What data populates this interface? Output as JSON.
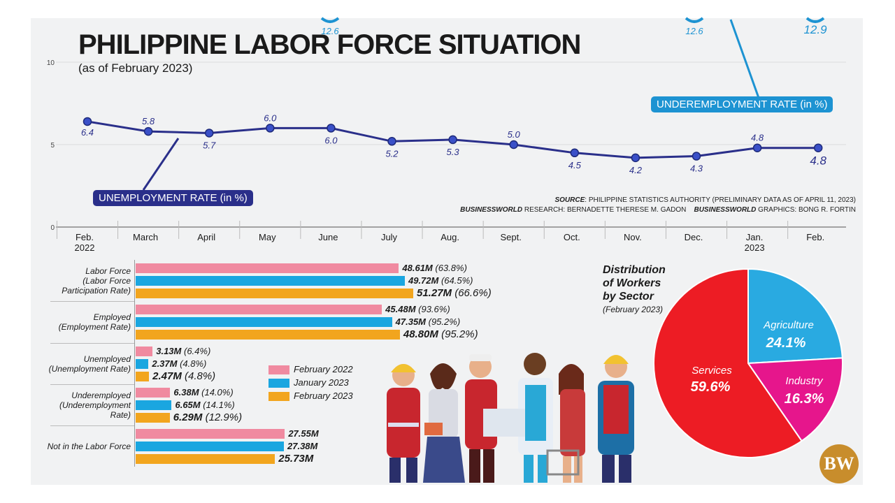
{
  "title": "PHILIPPINE LABOR FORCE SITUATION",
  "subtitle": "(as of February 2023)",
  "source": {
    "line1_label": "SOURCE",
    "line1_text": ": PHILIPPINE STATISTICS AUTHORITY (PRELIMINARY DATA AS OF APRIL 11, 2023)",
    "research_label": "BUSINESSWORLD",
    "research_text": " RESEARCH: BERNADETTE THERESE M. GADON",
    "graphics_label": "BUSINESSWORLD",
    "graphics_text": " GRAPHICS: BONG R. FORTIN"
  },
  "logo": "BW",
  "colors": {
    "unemployment": "#2a2f8a",
    "underemployment": "#1d93d2",
    "feb2022": "#f08aa0",
    "jan2023": "#1aa6e0",
    "feb2023": "#f2a51e",
    "services": "#ed1c24",
    "agriculture": "#29aae1",
    "industry": "#e6168c"
  },
  "chart_data": [
    {
      "type": "line",
      "categories": [
        "Feb.",
        "March",
        "April",
        "May",
        "June",
        "July",
        "Aug.",
        "Sept.",
        "Oct.",
        "Nov.",
        "Dec.",
        "Jan.",
        "Feb."
      ],
      "category_years": [
        "2022",
        "",
        "",
        "",
        "",
        "",
        "",
        "",
        "",
        "",
        "",
        "2023",
        ""
      ],
      "y_ticks": [
        "10",
        "5",
        "0"
      ],
      "ylim": [
        0,
        10
      ],
      "series": [
        {
          "name": "UNEMPLOYMENT RATE (in %)",
          "values": [
            6.4,
            5.8,
            5.7,
            6.0,
            6.0,
            5.2,
            5.3,
            5.0,
            4.5,
            4.2,
            4.3,
            4.8,
            4.8
          ],
          "labels": [
            "6.4",
            "5.8",
            "5.7",
            "6.0",
            "6.0",
            "5.2",
            "5.3",
            "5.0",
            "4.5",
            "4.2",
            "4.3",
            "4.8",
            "4.8"
          ]
        },
        {
          "name": "UNDEREMPLOYMENT RATE (in %)",
          "visible_labels": [
            {
              "index": 4,
              "label": "12.6"
            },
            {
              "index": 10,
              "label": "12.6"
            },
            {
              "index": 12,
              "label": "12.9"
            }
          ]
        }
      ]
    },
    {
      "type": "bar",
      "orientation": "horizontal",
      "categories": [
        [
          "Labor Force",
          "(Labor Force",
          "Participation Rate)"
        ],
        [
          "Employed",
          "(Employment Rate)"
        ],
        [
          "Unemployed",
          "(Unemployment Rate)"
        ],
        [
          "Underemployed",
          "(Underemployment",
          "Rate)"
        ],
        [
          "Not in the Labor Force"
        ]
      ],
      "series": [
        {
          "name": "February 2022",
          "values": [
            48.61,
            45.48,
            3.13,
            6.38,
            27.55
          ],
          "labels": [
            "48.61M",
            "45.48M",
            "3.13M",
            "6.38M",
            "27.55M"
          ],
          "pct": [
            "(63.8%)",
            "(93.6%)",
            "(6.4%)",
            "(14.0%)",
            ""
          ]
        },
        {
          "name": "January 2023",
          "values": [
            49.72,
            47.35,
            2.37,
            6.65,
            27.38
          ],
          "labels": [
            "49.72M",
            "47.35M",
            "2.37M",
            "6.65M",
            "27.38M"
          ],
          "pct": [
            "(64.5%)",
            "(95.2%)",
            "(4.8%)",
            "(14.1%)",
            ""
          ]
        },
        {
          "name": "February 2023",
          "values": [
            51.27,
            48.8,
            2.47,
            6.29,
            25.73
          ],
          "labels": [
            "51.27M",
            "48.80M",
            "2.47M",
            "6.29M",
            "25.73M"
          ],
          "pct": [
            "(66.6%)",
            "(95.2%)",
            "(4.8%)",
            "(12.9%)",
            ""
          ]
        }
      ]
    },
    {
      "type": "pie",
      "title": [
        "Distribution",
        "of Workers",
        "by Sector"
      ],
      "subtitle": "(February 2023)",
      "slices": [
        {
          "name": "Agriculture",
          "value": 24.1,
          "label": "24.1%"
        },
        {
          "name": "Industry",
          "value": 16.3,
          "label": "16.3%"
        },
        {
          "name": "Services",
          "value": 59.6,
          "label": "59.6%"
        }
      ]
    }
  ]
}
